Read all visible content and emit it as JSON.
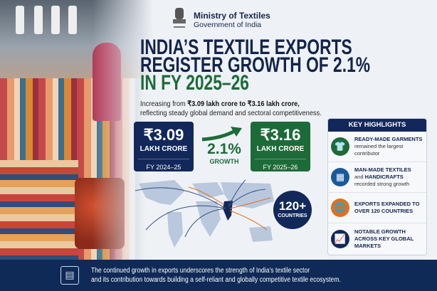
{
  "header": {
    "ministry": "Ministry of Textiles",
    "government": "Government of India",
    "emblem_text": "सत्यमेव जयते"
  },
  "title": {
    "line1": "INDIA’S TEXTILE EXPORTS",
    "line2": "REGISTER GROWTH OF 2.1%",
    "line3": "IN FY 2025–26"
  },
  "subtitle": {
    "prefix": "Increasing from ",
    "highlight": "₹3.09 lakh crore to ₹3.16 lakh crore,",
    "line2": "reflecting steady global demand and sectoral competitiveness."
  },
  "stats": {
    "previous": {
      "value": "₹3.09",
      "unit": "LAKH CRORE",
      "year": "FY 2024–25"
    },
    "growth": {
      "value": "2.1%",
      "label": "GROWTH"
    },
    "current": {
      "value": "₹3.16",
      "unit": "LAKH CRORE",
      "year": "FY 2025–26"
    }
  },
  "reach": {
    "value": "120+",
    "label": "COUNTRIES"
  },
  "highlights": {
    "title": "KEY HIGHLIGHTS",
    "items": [
      {
        "icon": "tshirt-icon",
        "color": "#1d6b38",
        "bold": "READY-MADE GARMENTS",
        "text": "remained the largest contributor"
      },
      {
        "icon": "fabric-icon",
        "color": "#1a5a9a",
        "bold": "MAN-MADE TEXTILES",
        "mid": "and ",
        "bold2": "HANDICRAFTS",
        "text": "recorded strong growth"
      },
      {
        "icon": "globe-icon",
        "color": "#e0701e",
        "bold": "EXPORTS EXPANDED TO OVER 120 COUNTRIES"
      },
      {
        "icon": "growth-chart-icon",
        "color": "#12285a",
        "bold": "NOTABLE GROWTH ACROSS KEY GLOBAL MARKETS"
      }
    ]
  },
  "footer": {
    "line1": "The continued growth in exports underscores the strength of India’s textile sector",
    "line2": "and its contribution towards building a self-reliant and globally competitive textile ecosystem."
  }
}
